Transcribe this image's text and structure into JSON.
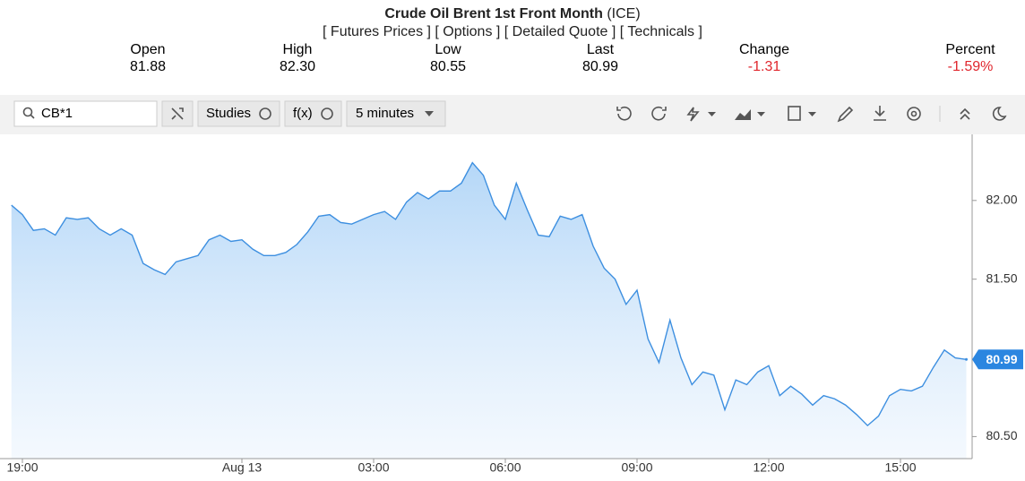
{
  "header": {
    "title": "Crude Oil Brent 1st Front Month",
    "exchange": "(ICE)",
    "links": [
      "[ Futures Prices ]",
      "[ Options ]",
      "[ Detailed Quote ]",
      "[ Technicals ]"
    ]
  },
  "quote": {
    "labels": [
      "Open",
      "High",
      "Low",
      "Last",
      "Change",
      "Percent"
    ],
    "values": [
      "81.88",
      "82.30",
      "80.55",
      "80.99",
      "-1.31",
      "-1.59%"
    ]
  },
  "toolbar": {
    "symbol": "CB*1",
    "studies": "Studies",
    "fx": "f(x)",
    "interval": "5 minutes"
  },
  "chart_data": {
    "type": "area",
    "color": "#3d8fe0",
    "categories": [
      "18:45",
      "19:00",
      "19:15",
      "19:30",
      "19:45",
      "20:00",
      "20:15",
      "20:30",
      "20:45",
      "21:00",
      "21:15",
      "21:30",
      "21:45",
      "22:00",
      "22:15",
      "22:30",
      "22:45",
      "23:00",
      "23:15",
      "23:30",
      "23:45",
      "00:00",
      "00:15",
      "00:30",
      "00:45",
      "01:00",
      "01:15",
      "01:30",
      "01:45",
      "02:00",
      "02:15",
      "02:30",
      "02:45",
      "03:00",
      "03:15",
      "03:30",
      "03:45",
      "04:00",
      "04:15",
      "04:30",
      "04:45",
      "05:00",
      "05:15",
      "05:30",
      "05:45",
      "06:00",
      "06:15",
      "06:30",
      "06:45",
      "07:00",
      "07:15",
      "07:30",
      "07:45",
      "08:00",
      "08:15",
      "08:30",
      "08:45",
      "09:00",
      "09:15",
      "09:30",
      "09:45",
      "10:00",
      "10:15",
      "10:30",
      "10:45",
      "11:00",
      "11:15",
      "11:30",
      "11:45",
      "12:00",
      "12:15",
      "12:30",
      "12:45",
      "13:00",
      "13:15",
      "13:30",
      "13:45",
      "14:00",
      "14:15",
      "14:30",
      "14:45",
      "15:00",
      "15:15",
      "15:30",
      "15:45",
      "16:00",
      "16:15",
      "16:30"
    ],
    "values": [
      81.97,
      81.91,
      81.81,
      81.82,
      81.78,
      81.89,
      81.88,
      81.89,
      81.82,
      81.78,
      81.82,
      81.78,
      81.6,
      81.56,
      81.53,
      81.61,
      81.63,
      81.65,
      81.75,
      81.78,
      81.74,
      81.75,
      81.69,
      81.65,
      81.65,
      81.67,
      81.72,
      81.8,
      81.9,
      81.91,
      81.86,
      81.85,
      81.88,
      81.91,
      81.93,
      81.88,
      81.99,
      82.05,
      82.01,
      82.06,
      82.06,
      82.11,
      82.24,
      82.16,
      81.97,
      81.88,
      82.11,
      81.94,
      81.78,
      81.77,
      81.9,
      81.88,
      81.91,
      81.71,
      81.57,
      81.5,
      81.34,
      81.43,
      81.12,
      80.97,
      81.24,
      81.0,
      80.83,
      80.91,
      80.89,
      80.67,
      80.86,
      80.83,
      80.91,
      80.95,
      80.76,
      80.82,
      80.77,
      80.7,
      80.76,
      80.74,
      80.7,
      80.64,
      80.57,
      80.63,
      80.76,
      80.8,
      80.79,
      80.82,
      80.94,
      81.05,
      81.0,
      80.99
    ],
    "xticks": [
      {
        "value": 1,
        "label": "19:00"
      },
      {
        "value": 21,
        "label": "Aug 13"
      },
      {
        "value": 33,
        "label": "03:00"
      },
      {
        "value": 45,
        "label": "06:00"
      },
      {
        "value": 57,
        "label": "09:00"
      },
      {
        "value": 69,
        "label": "12:00"
      },
      {
        "value": 81,
        "label": "15:00"
      }
    ],
    "ylim": [
      80.36,
      82.42
    ],
    "yticks": [
      {
        "value": 80.5,
        "label": "80.50"
      },
      {
        "value": 81.5,
        "label": "81.50"
      },
      {
        "value": 82,
        "label": "82.00"
      }
    ],
    "grid": false
  }
}
